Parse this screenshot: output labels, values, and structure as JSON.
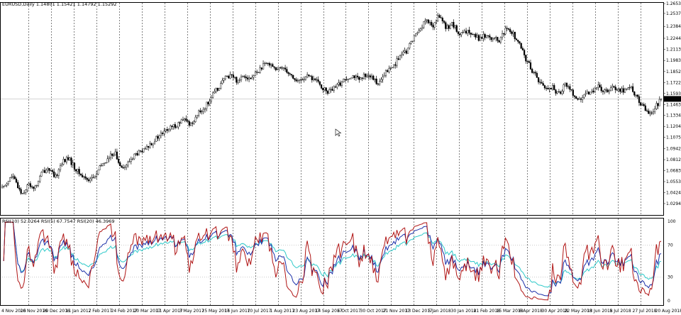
{
  "chart_data": {
    "type": "candlestick",
    "price_panel": {
      "header": "EURUSD,Daily  1.14801 1.15421 1.14792 1.15292",
      "y_ticks": [
        "1.26535",
        "1.25375",
        "1.23845",
        "1.22440",
        "1.21135",
        "1.19830",
        "1.18520",
        "1.17225",
        "1.15930",
        "1.15292",
        "1.14635",
        "1.13340",
        "1.12045",
        "1.10750",
        "1.09420",
        "1.08125",
        "1.06830",
        "1.05535",
        "1.04240",
        "1.02945"
      ],
      "current_price": "1.15292",
      "ylim": [
        1.0294,
        1.2654
      ],
      "close_path": [
        [
          0,
          1.048
        ],
        [
          6,
          1.062
        ],
        [
          12,
          1.041
        ],
        [
          16,
          1.052
        ],
        [
          20,
          1.048
        ],
        [
          24,
          1.066
        ],
        [
          28,
          1.072
        ],
        [
          32,
          1.059
        ],
        [
          36,
          1.078
        ],
        [
          40,
          1.083
        ],
        [
          44,
          1.071
        ],
        [
          48,
          1.062
        ],
        [
          52,
          1.058
        ],
        [
          56,
          1.061
        ],
        [
          60,
          1.075
        ],
        [
          64,
          1.082
        ],
        [
          68,
          1.091
        ],
        [
          70,
          1.078
        ],
        [
          74,
          1.072
        ],
        [
          80,
          1.087
        ],
        [
          86,
          1.092
        ],
        [
          90,
          1.101
        ],
        [
          96,
          1.111
        ],
        [
          100,
          1.117
        ],
        [
          104,
          1.121
        ],
        [
          110,
          1.128
        ],
        [
          114,
          1.123
        ],
        [
          118,
          1.135
        ],
        [
          122,
          1.142
        ],
        [
          126,
          1.154
        ],
        [
          130,
          1.165
        ],
        [
          134,
          1.176
        ],
        [
          138,
          1.182
        ],
        [
          142,
          1.174
        ],
        [
          146,
          1.182
        ],
        [
          150,
          1.176
        ],
        [
          154,
          1.185
        ],
        [
          158,
          1.192
        ],
        [
          162,
          1.196
        ],
        [
          166,
          1.186
        ],
        [
          170,
          1.191
        ],
        [
          174,
          1.182
        ],
        [
          178,
          1.173
        ],
        [
          184,
          1.179
        ],
        [
          188,
          1.177
        ],
        [
          192,
          1.169
        ],
        [
          196,
          1.161
        ],
        [
          200,
          1.164
        ],
        [
          204,
          1.171
        ],
        [
          208,
          1.178
        ],
        [
          212,
          1.181
        ],
        [
          216,
          1.174
        ],
        [
          220,
          1.183
        ],
        [
          224,
          1.176
        ],
        [
          228,
          1.171
        ],
        [
          232,
          1.185
        ],
        [
          236,
          1.191
        ],
        [
          240,
          1.203
        ],
        [
          244,
          1.208
        ],
        [
          248,
          1.224
        ],
        [
          252,
          1.235
        ],
        [
          256,
          1.246
        ],
        [
          260,
          1.238
        ],
        [
          264,
          1.252
        ],
        [
          268,
          1.236
        ],
        [
          272,
          1.242
        ],
        [
          276,
          1.228
        ],
        [
          280,
          1.231
        ],
        [
          284,
          1.232
        ],
        [
          288,
          1.224
        ],
        [
          292,
          1.228
        ],
        [
          296,
          1.225
        ],
        [
          300,
          1.221
        ],
        [
          304,
          1.234
        ],
        [
          308,
          1.232
        ],
        [
          312,
          1.218
        ],
        [
          316,
          1.201
        ],
        [
          320,
          1.187
        ],
        [
          324,
          1.175
        ],
        [
          328,
          1.165
        ],
        [
          332,
          1.167
        ],
        [
          336,
          1.158
        ],
        [
          340,
          1.171
        ],
        [
          344,
          1.162
        ],
        [
          348,
          1.151
        ],
        [
          352,
          1.156
        ],
        [
          356,
          1.163
        ],
        [
          360,
          1.167
        ],
        [
          364,
          1.161
        ],
        [
          368,
          1.168
        ],
        [
          372,
          1.165
        ],
        [
          376,
          1.163
        ],
        [
          380,
          1.167
        ],
        [
          384,
          1.152
        ],
        [
          388,
          1.141
        ],
        [
          392,
          1.136
        ],
        [
          396,
          1.147
        ],
        [
          398,
          1.153
        ]
      ]
    },
    "rsi_panel": {
      "header": "RSI(10) 52.0264  RSI(5) 67.7547  RSI(20) 46.3969",
      "y_ticks": [
        "100",
        "70",
        "30",
        "0"
      ],
      "ylim": [
        0,
        100
      ],
      "levels": [
        30,
        70
      ],
      "series": [
        {
          "name": "RSI(10)",
          "color": "#1a2fa8",
          "value": 52.0264
        },
        {
          "name": "RSI(5)",
          "color": "#b01515",
          "value": 67.7547
        },
        {
          "name": "RSI(20)",
          "color": "#2ec9c9",
          "value": 46.3969
        }
      ]
    },
    "x_ticks": [
      "4 Nov 2016",
      "20 Nov 2016",
      "20 Dec 2016",
      "11 Jan 2017",
      "2 Feb 2017",
      "24 Feb 2017",
      "20 Mar 2017",
      "11 Apr 2017",
      "3 May 2017",
      "25 May 2017",
      "16 Jun 2017",
      "10 Jul 2017",
      "1 Aug 2017",
      "23 Aug 2017",
      "14 Sep 2017",
      "6 Oct 2017",
      "30 Oct 2017",
      "21 Nov 2017",
      "13 Dec 2017",
      "5 Jan 2018",
      "30 Jan 2018",
      "21 Feb 2018",
      "15 Mar 2018",
      "6 Apr 2018",
      "30 Apr 2018",
      "22 May 2018",
      "13 Jun 2018",
      "5 Jul 2018",
      "27 Jul 2018",
      "20 Aug 2018"
    ],
    "grid": "vertical dashed at x ticks"
  },
  "colors": {
    "background": "#ffffff",
    "candle": "#000000",
    "grid": "#000000",
    "rsi10": "#1a2fa8",
    "rsi5": "#b01515",
    "rsi20": "#2ec9c9"
  }
}
